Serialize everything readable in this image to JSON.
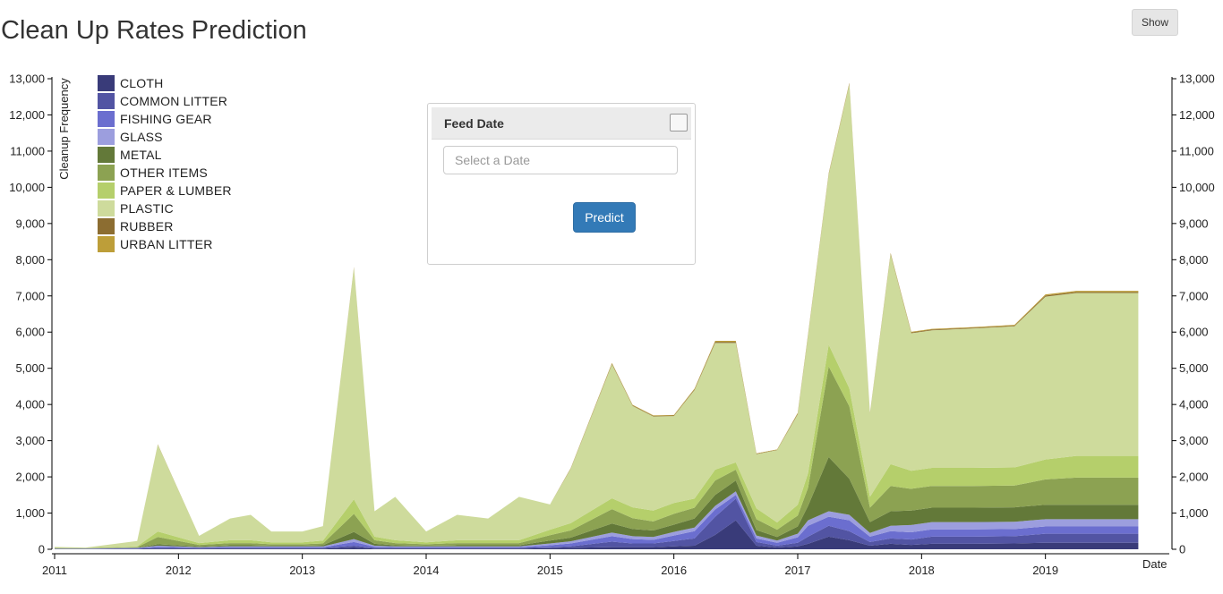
{
  "page": {
    "title": "Clean Up Rates Prediction",
    "show_button": "Show"
  },
  "panel": {
    "title": "Feed Date",
    "date_placeholder": "Select a Date",
    "predict_button": "Predict"
  },
  "chart_data": {
    "type": "area",
    "stacked": true,
    "ylabel": "Cleanup Frequency",
    "xlabel": "Date",
    "ylim": [
      0,
      13000
    ],
    "y_ticks": [
      0,
      1000,
      2000,
      3000,
      4000,
      5000,
      6000,
      7000,
      8000,
      9000,
      10000,
      11000,
      12000,
      13000
    ],
    "y_tick_labels": [
      "0",
      "1,000",
      "2,000",
      "3,000",
      "4,000",
      "5,000",
      "6,000",
      "7,000",
      "8,000",
      "9,000",
      "10,000",
      "11,000",
      "12,000",
      "13,000"
    ],
    "x_ticks": [
      "2011",
      "2012",
      "2013",
      "2014",
      "2015",
      "2016",
      "2017",
      "2018",
      "2019"
    ],
    "grid": false,
    "legend_position": "top-left",
    "x": [
      "2011-01",
      "2011-04",
      "2011-09",
      "2011-11",
      "2012-03",
      "2012-06",
      "2012-08",
      "2012-10",
      "2013-01",
      "2013-03",
      "2013-06",
      "2013-08",
      "2013-10",
      "2014-01",
      "2014-04",
      "2014-07",
      "2014-10",
      "2015-01",
      "2015-03",
      "2015-07",
      "2015-09",
      "2015-11",
      "2016-01",
      "2016-03",
      "2016-05",
      "2016-07",
      "2016-09",
      "2016-11",
      "2017-01",
      "2017-02",
      "2017-04",
      "2017-06",
      "2017-08",
      "2017-10",
      "2017-12",
      "2018-02",
      "2018-06",
      "2018-10",
      "2019-01",
      "2019-04",
      "2019-10"
    ],
    "series": [
      {
        "name": "CLOTH",
        "color": "#393b79",
        "values": [
          5,
          5,
          10,
          20,
          15,
          20,
          20,
          20,
          20,
          20,
          50,
          20,
          20,
          20,
          20,
          20,
          20,
          30,
          40,
          60,
          60,
          60,
          80,
          100,
          400,
          800,
          100,
          50,
          80,
          150,
          350,
          250,
          100,
          150,
          120,
          150,
          150,
          160,
          180,
          180,
          180
        ]
      },
      {
        "name": "COMMON LITTER",
        "color": "#5254a3",
        "values": [
          5,
          5,
          10,
          20,
          15,
          20,
          20,
          20,
          20,
          20,
          50,
          20,
          20,
          20,
          20,
          20,
          20,
          30,
          40,
          150,
          100,
          100,
          150,
          200,
          500,
          600,
          100,
          50,
          100,
          200,
          300,
          250,
          100,
          150,
          150,
          200,
          200,
          200,
          250,
          250,
          250
        ]
      },
      {
        "name": "FISHING GEAR",
        "color": "#6b6ecf",
        "values": [
          5,
          5,
          10,
          30,
          15,
          20,
          20,
          20,
          20,
          20,
          100,
          30,
          20,
          20,
          20,
          20,
          20,
          50,
          80,
          150,
          120,
          100,
          150,
          200,
          200,
          100,
          100,
          80,
          150,
          300,
          250,
          300,
          150,
          200,
          200,
          200,
          200,
          200,
          200,
          200,
          200
        ]
      },
      {
        "name": "GLASS",
        "color": "#9c9ede",
        "values": [
          5,
          5,
          10,
          30,
          15,
          20,
          20,
          20,
          20,
          20,
          80,
          30,
          20,
          20,
          20,
          20,
          20,
          50,
          60,
          100,
          80,
          80,
          100,
          100,
          100,
          100,
          80,
          60,
          100,
          150,
          150,
          150,
          100,
          150,
          200,
          200,
          200,
          200,
          200,
          200,
          200
        ]
      },
      {
        "name": "METAL",
        "color": "#637939",
        "values": [
          5,
          5,
          10,
          40,
          20,
          30,
          30,
          20,
          20,
          30,
          200,
          50,
          30,
          20,
          30,
          30,
          30,
          80,
          100,
          250,
          200,
          180,
          200,
          250,
          300,
          300,
          150,
          100,
          200,
          400,
          1500,
          1000,
          300,
          400,
          400,
          400,
          400,
          400,
          400,
          400,
          400
        ]
      },
      {
        "name": "OTHER ITEMS",
        "color": "#8ca252",
        "values": [
          10,
          5,
          10,
          200,
          40,
          60,
          60,
          40,
          40,
          50,
          500,
          100,
          60,
          40,
          60,
          60,
          60,
          150,
          200,
          400,
          300,
          250,
          300,
          300,
          400,
          300,
          300,
          200,
          300,
          500,
          2500,
          2000,
          400,
          700,
          600,
          600,
          600,
          600,
          700,
          750,
          750
        ]
      },
      {
        "name": "PAPER & LUMBER",
        "color": "#b5cf6b",
        "values": [
          10,
          5,
          20,
          150,
          50,
          80,
          80,
          50,
          50,
          80,
          400,
          100,
          80,
          50,
          80,
          80,
          80,
          150,
          200,
          300,
          300,
          300,
          300,
          250,
          300,
          200,
          300,
          200,
          300,
          400,
          600,
          500,
          300,
          600,
          500,
          500,
          500,
          500,
          550,
          600,
          600
        ]
      },
      {
        "name": "PLASTIC",
        "color": "#cedb9c",
        "values": [
          20,
          10,
          150,
          2400,
          200,
          600,
          700,
          300,
          300,
          400,
          6400,
          700,
          1200,
          300,
          700,
          600,
          1200,
          700,
          1500,
          3700,
          2800,
          2600,
          2400,
          3000,
          3500,
          3300,
          1500,
          2000,
          2500,
          3800,
          4700,
          8400,
          2300,
          5800,
          3800,
          3800,
          3850,
          3900,
          4500,
          4500,
          4500
        ]
      },
      {
        "name": "RUBBER",
        "color": "#8c6d31",
        "values": [
          0,
          0,
          0,
          5,
          0,
          0,
          0,
          0,
          0,
          0,
          10,
          0,
          0,
          0,
          0,
          0,
          0,
          0,
          10,
          20,
          15,
          15,
          15,
          20,
          30,
          30,
          10,
          10,
          20,
          20,
          20,
          20,
          10,
          20,
          20,
          20,
          20,
          20,
          30,
          30,
          30
        ]
      },
      {
        "name": "URBAN LITTER",
        "color": "#bd9e39",
        "values": [
          0,
          0,
          0,
          5,
          0,
          0,
          0,
          0,
          0,
          0,
          10,
          0,
          0,
          0,
          0,
          0,
          0,
          0,
          10,
          20,
          15,
          15,
          15,
          20,
          30,
          30,
          10,
          10,
          20,
          20,
          20,
          20,
          10,
          20,
          20,
          20,
          20,
          20,
          30,
          30,
          30
        ]
      }
    ]
  }
}
